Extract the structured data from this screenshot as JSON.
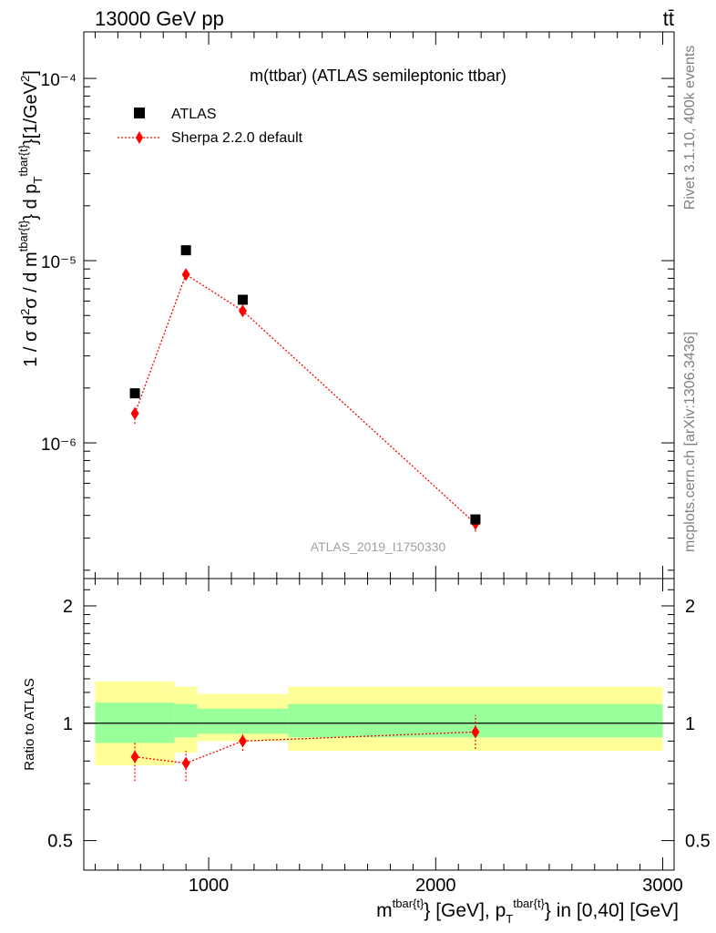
{
  "header": {
    "energy": "13000 GeV pp",
    "process": "tt̄"
  },
  "side_labels": {
    "rivet": "Rivet 3.1.10,  400k events",
    "mcplots": "mcplots.cern.ch [arXiv:1306.3436]"
  },
  "chart_data": [
    {
      "type": "scatter",
      "title": "m(ttbar) (ATLAS semileptonic ttbar)",
      "watermark": "ATLAS_2019_I1750330",
      "ylabel_main": "1 / σ d²σ / d m^{tbar{t}} d p_T^{tbar{t}} [1/GeV²]",
      "y_scale": "log",
      "ylim": [
        1.8e-07,
        0.00018
      ],
      "xlim": [
        450,
        3050
      ],
      "y_tick_labels": [
        "10⁻⁶",
        "10⁻⁵",
        "10⁻⁴"
      ],
      "legend_position": "top-left",
      "series": [
        {
          "name": "ATLAS",
          "marker": "square",
          "color": "#000000",
          "x": [
            675,
            900,
            1150,
            2175
          ],
          "y": [
            1.87e-06,
            1.14e-05,
            6.1e-06,
            3.8e-07
          ]
        },
        {
          "name": "Sherpa 2.2.0 default",
          "marker": "diamond",
          "color": "#ff0000",
          "line": "dotted",
          "x": [
            675,
            900,
            1150,
            2175
          ],
          "y": [
            1.45e-06,
            8.4e-06,
            5.3e-06,
            3.6e-07
          ],
          "y_low": [
            1.27e-06,
            7.8e-06,
            5e-06,
            3.25e-07
          ],
          "y_high": [
            1.6e-06,
            9e-06,
            5.55e-06,
            3.9e-07
          ]
        }
      ]
    },
    {
      "type": "scatter",
      "ylabel": "Ratio to ATLAS",
      "xlabel": "m^{tbar{t}} [GeV], p_T^{tbar{t}} in [0,40] [GeV]",
      "xlim": [
        450,
        3050
      ],
      "ylim": [
        0.42,
        2.35
      ],
      "y_scale": "log",
      "x_tick_labels": [
        "1000",
        "2000",
        "3000"
      ],
      "y_tick_labels": [
        "0.5",
        "1",
        "2"
      ],
      "reference_line": 1,
      "bands": {
        "bins": [
          [
            500,
            850
          ],
          [
            850,
            950
          ],
          [
            950,
            1350
          ],
          [
            1350,
            3000
          ]
        ],
        "inner_low": [
          0.89,
          0.92,
          0.94,
          0.92
        ],
        "inner_high": [
          1.13,
          1.12,
          1.09,
          1.12
        ],
        "outer_low": [
          0.78,
          0.84,
          0.9,
          0.85
        ],
        "outer_high": [
          1.28,
          1.24,
          1.19,
          1.24
        ],
        "inner_color": "#99ff99",
        "outer_color": "#ffff99"
      },
      "series": [
        {
          "name": "Sherpa 2.2.0 default",
          "marker": "diamond",
          "color": "#ff0000",
          "line": "dotted",
          "x": [
            675,
            900,
            1150,
            2175
          ],
          "y": [
            0.82,
            0.79,
            0.9,
            0.95
          ],
          "y_low": [
            0.71,
            0.71,
            0.85,
            0.86
          ],
          "y_high": [
            0.9,
            0.85,
            0.94,
            1.05
          ]
        }
      ]
    }
  ]
}
